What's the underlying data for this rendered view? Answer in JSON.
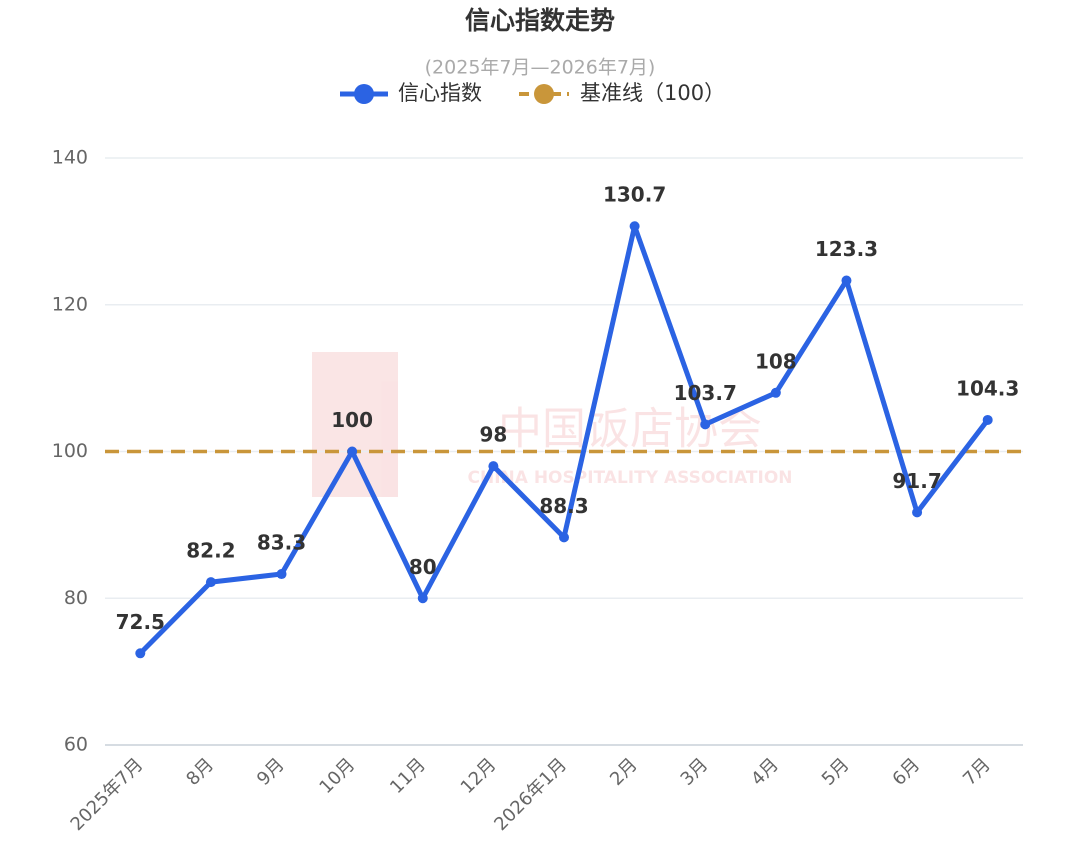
{
  "chart_data": {
    "type": "line",
    "title": "信心指数走势",
    "subtitle": "(2025年7月—2026年7月)",
    "watermark": [
      "中国饭店协会",
      "CHINA HOSPITALITY ASSOCIATION"
    ],
    "categories": [
      "2025年7月",
      "8月",
      "9月",
      "10月",
      "11月",
      "12月",
      "2026年1月",
      "2月",
      "3月",
      "4月",
      "5月",
      "6月",
      "7月"
    ],
    "series": [
      {
        "name": "信心指数",
        "color": "#2b63e3",
        "values": [
          72.5,
          82.2,
          83.3,
          100,
          80,
          98,
          88.3,
          130.7,
          103.7,
          108,
          123.3,
          91.7,
          104.3
        ]
      }
    ],
    "reference_line": {
      "name": "基准线（100）",
      "value": 100,
      "color": "#c9963a"
    },
    "ylim": [
      60,
      140
    ],
    "yticks": [
      60,
      80,
      100,
      120,
      140
    ],
    "grid": true
  }
}
